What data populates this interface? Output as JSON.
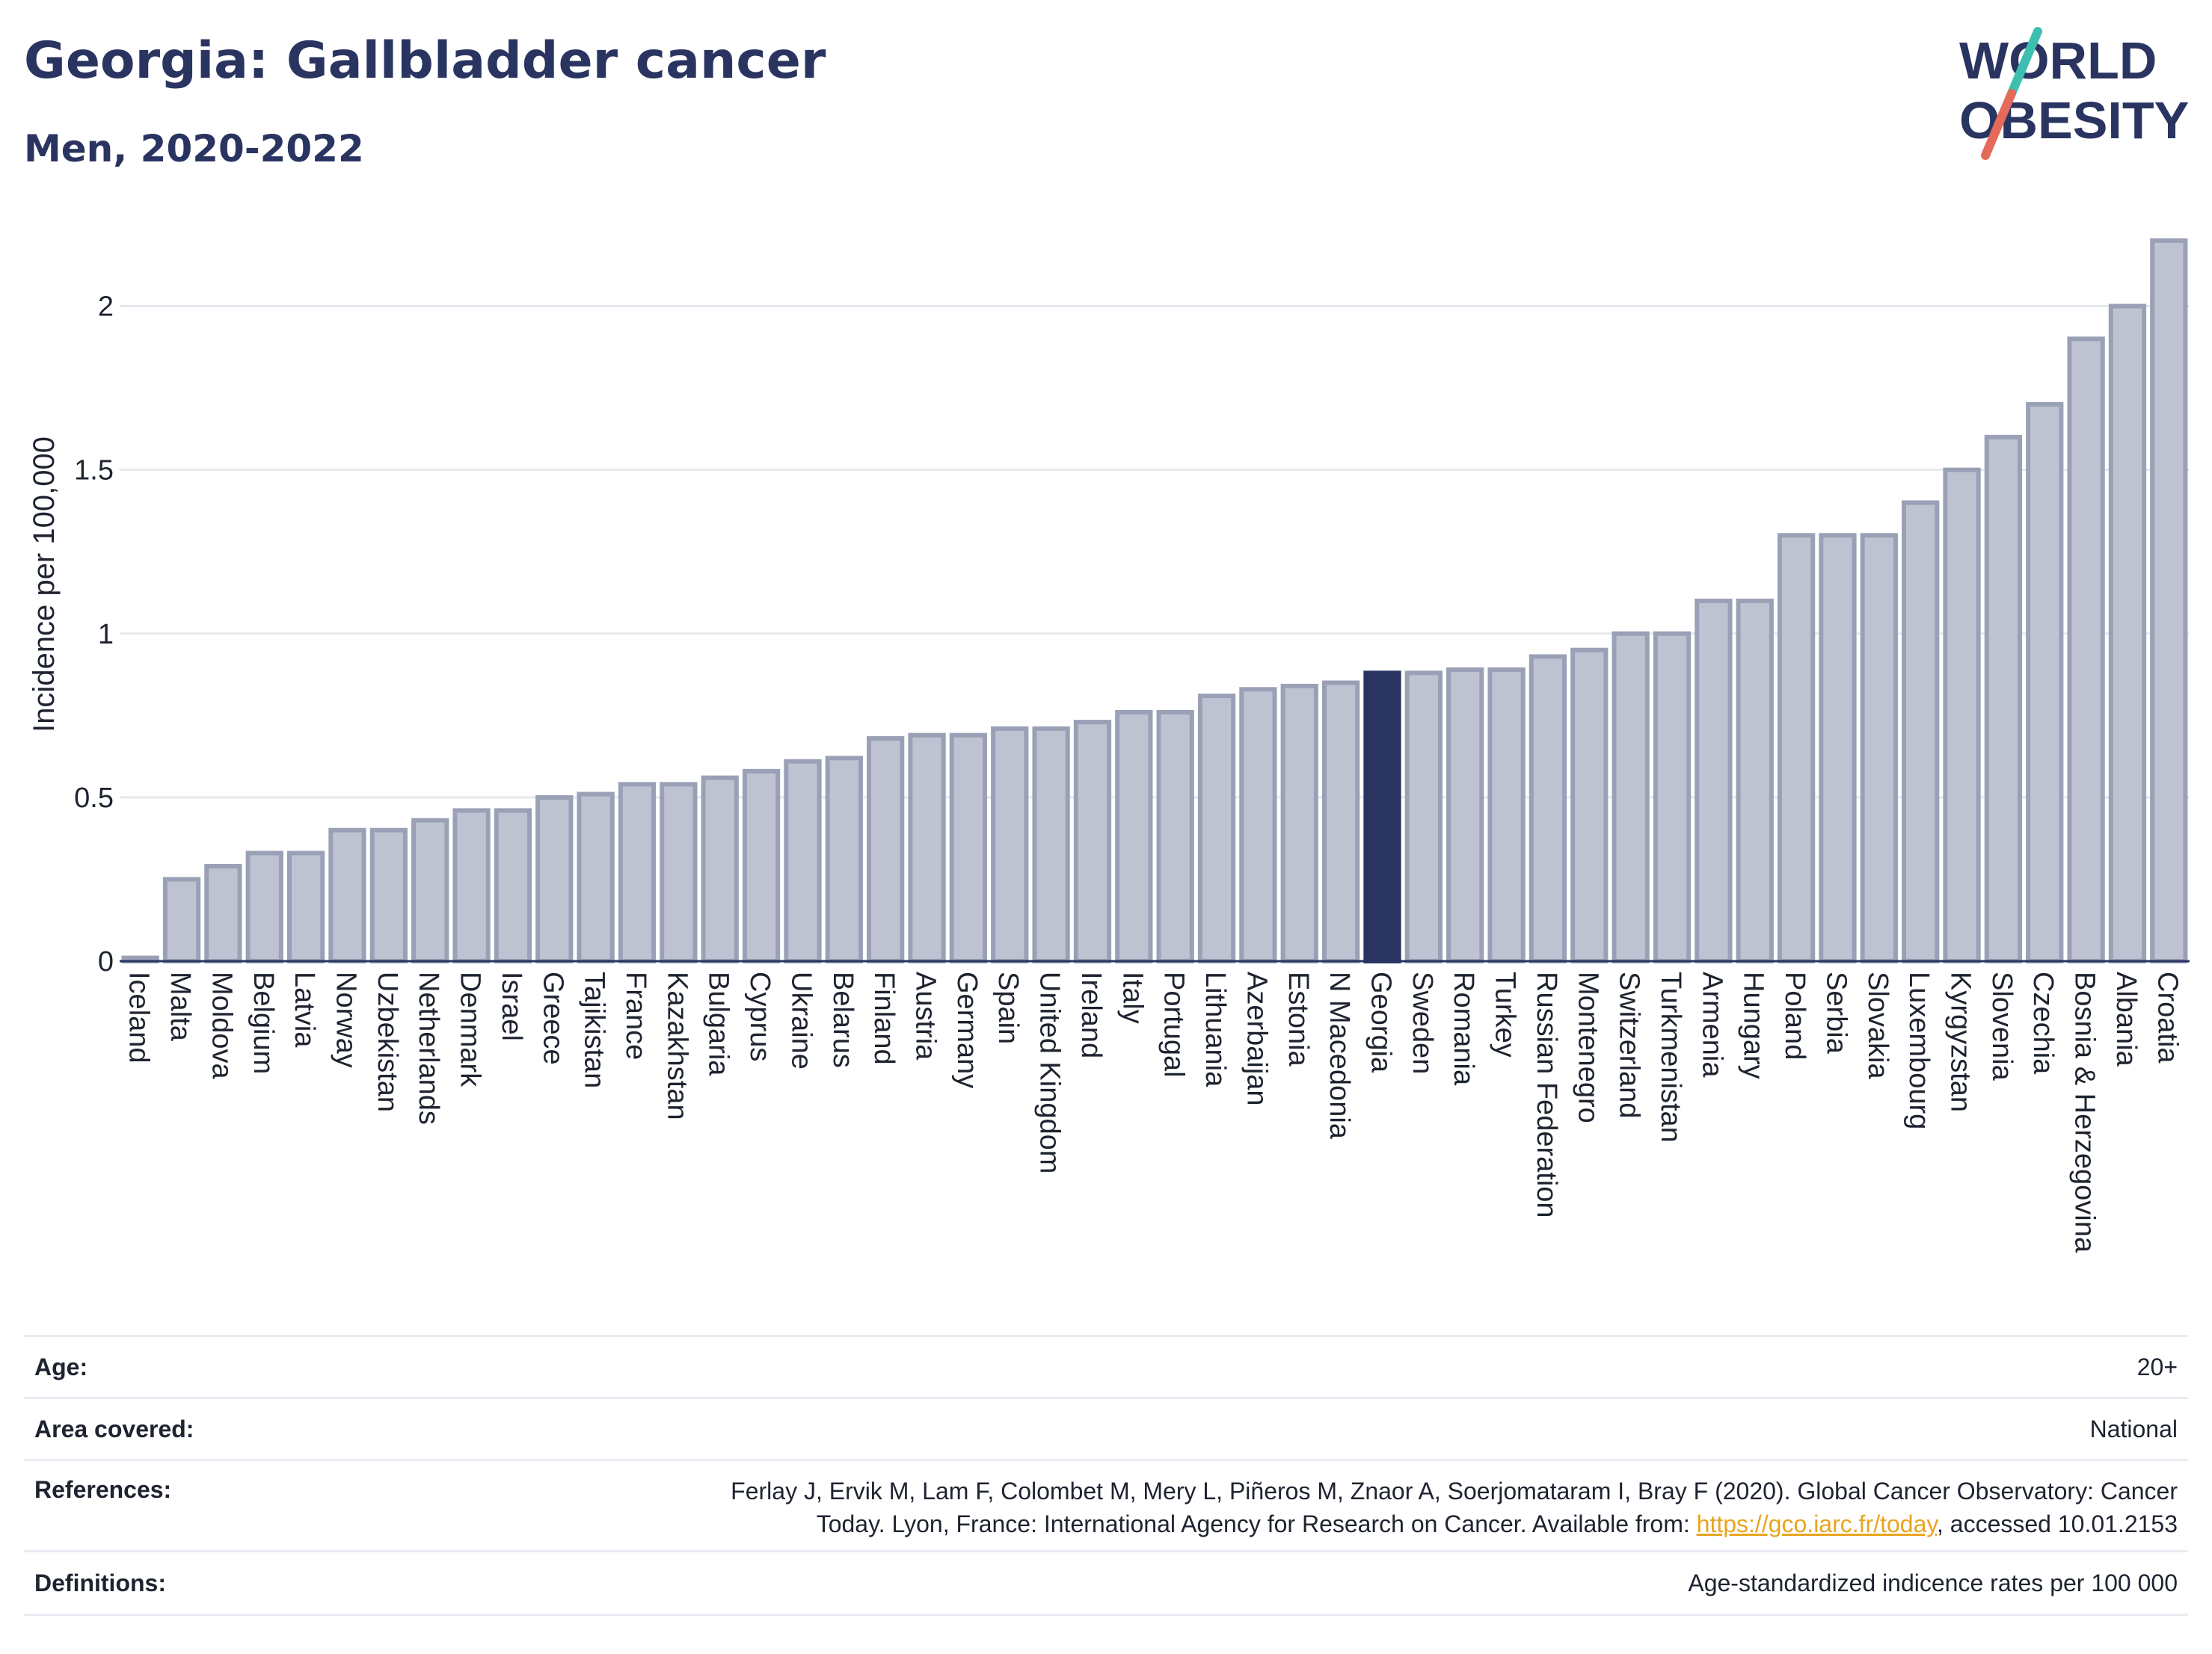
{
  "header": {
    "title": "Georgia: Gallbladder cancer",
    "subtitle": "Men, 2020-2022"
  },
  "logo": {
    "line1": "WORLD",
    "line2": "OBESITY",
    "slash_colors": [
      "#3dbfb0",
      "#e46a5a"
    ]
  },
  "colors": {
    "bar_default": "#bfc3d1",
    "bar_border": "#9aa0b6",
    "bar_highlight": "#2a3461",
    "text": "#2a3461",
    "grid": "#e6e8ee",
    "link": "#e8a51f"
  },
  "chart_data": {
    "type": "bar",
    "ylabel": "Incidence per 100,000",
    "ylim": [
      0,
      2.25
    ],
    "yticks": [
      0,
      0.5,
      1,
      1.5,
      2
    ],
    "ytick_labels": [
      "0",
      "0.5",
      "1",
      "1.5",
      "2"
    ],
    "highlight": "Georgia",
    "categories": [
      "Iceland",
      "Malta",
      "Moldova",
      "Belgium",
      "Latvia",
      "Norway",
      "Uzbekistan",
      "Netherlands",
      "Denmark",
      "Israel",
      "Greece",
      "Tajikistan",
      "France",
      "Kazakhstan",
      "Bulgaria",
      "Cyprus",
      "Ukraine",
      "Belarus",
      "Finland",
      "Austria",
      "Germany",
      "Spain",
      "United Kingdom",
      "Ireland",
      "Italy",
      "Portugal",
      "Lithuania",
      "Azerbaijan",
      "Estonia",
      "N Macedonia",
      "Georgia",
      "Sweden",
      "Romania",
      "Turkey",
      "Russian Federation",
      "Montenegro",
      "Switzerland",
      "Turkmenistan",
      "Armenia",
      "Hungary",
      "Poland",
      "Serbia",
      "Slovakia",
      "Luxembourg",
      "Kyrgyzstan",
      "Slovenia",
      "Czechia",
      "Bosnia & Herzegovina",
      "Albania",
      "Croatia"
    ],
    "values": [
      0.01,
      0.25,
      0.29,
      0.33,
      0.33,
      0.4,
      0.4,
      0.43,
      0.46,
      0.46,
      0.5,
      0.51,
      0.54,
      0.54,
      0.56,
      0.58,
      0.61,
      0.62,
      0.68,
      0.69,
      0.69,
      0.71,
      0.71,
      0.73,
      0.76,
      0.76,
      0.81,
      0.83,
      0.84,
      0.85,
      0.88,
      0.88,
      0.89,
      0.89,
      0.93,
      0.95,
      1.0,
      1.0,
      1.1,
      1.1,
      1.3,
      1.3,
      1.3,
      1.4,
      1.5,
      1.6,
      1.7,
      1.9,
      2.0,
      2.2
    ]
  },
  "meta": {
    "age_label": "Age:",
    "age_value": "20+",
    "area_label": "Area covered:",
    "area_value": "National",
    "references_label": "References:",
    "references_line1": "Ferlay J, Ervik M, Lam F, Colombet M, Mery L, Piñeros M, Znaor A, Soerjomataram I, Bray F (2020). Global Cancer Observatory: Cancer",
    "references_line2_pre": "Today. Lyon, France: International Agency for Research on Cancer. Available from: ",
    "references_link": "https://gco.iarc.fr/today",
    "references_line2_post": ", accessed 10.01.2153",
    "definitions_label": "Definitions:",
    "definitions_value": "Age-standardized indicence rates per 100 000"
  }
}
